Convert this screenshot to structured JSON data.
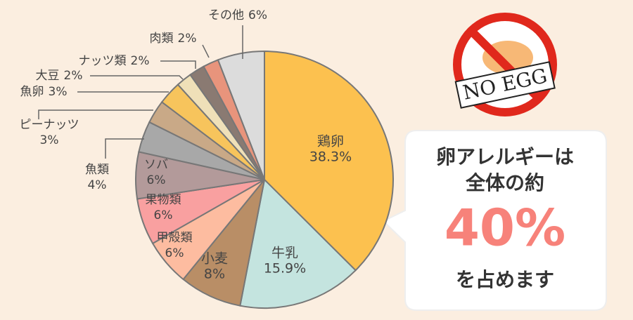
{
  "chart_data": {
    "type": "pie",
    "categories": [
      "鶏卵",
      "牛乳",
      "小麦",
      "甲殻類",
      "果物類",
      "ソバ",
      "魚類",
      "ピーナッツ",
      "魚卵",
      "大豆",
      "ナッツ類",
      "肉類",
      "その他"
    ],
    "values": [
      38.3,
      15.9,
      8,
      6,
      6,
      6,
      4,
      3,
      3,
      2,
      2,
      2,
      6
    ],
    "value_labels": [
      "38.3%",
      "15.9%",
      "8%",
      "6%",
      "6%",
      "6%",
      "4%",
      "3%",
      "3%",
      "2%",
      "2%",
      "2%",
      "6%"
    ],
    "colors": [
      "#fcc14f",
      "#c4e4df",
      "#b98e66",
      "#fdbca0",
      "#f9a0a0",
      "#b39a9a",
      "#a8a8a8",
      "#c9a987",
      "#f7c45c",
      "#efe0b8",
      "#8a7a72",
      "#e8947c",
      "#dcdcdc"
    ]
  },
  "badge": "NO EGG",
  "callout": {
    "line1": "卵アレルギーは",
    "line2": "全体の約",
    "highlight": "40%",
    "line4": "を占めます"
  }
}
